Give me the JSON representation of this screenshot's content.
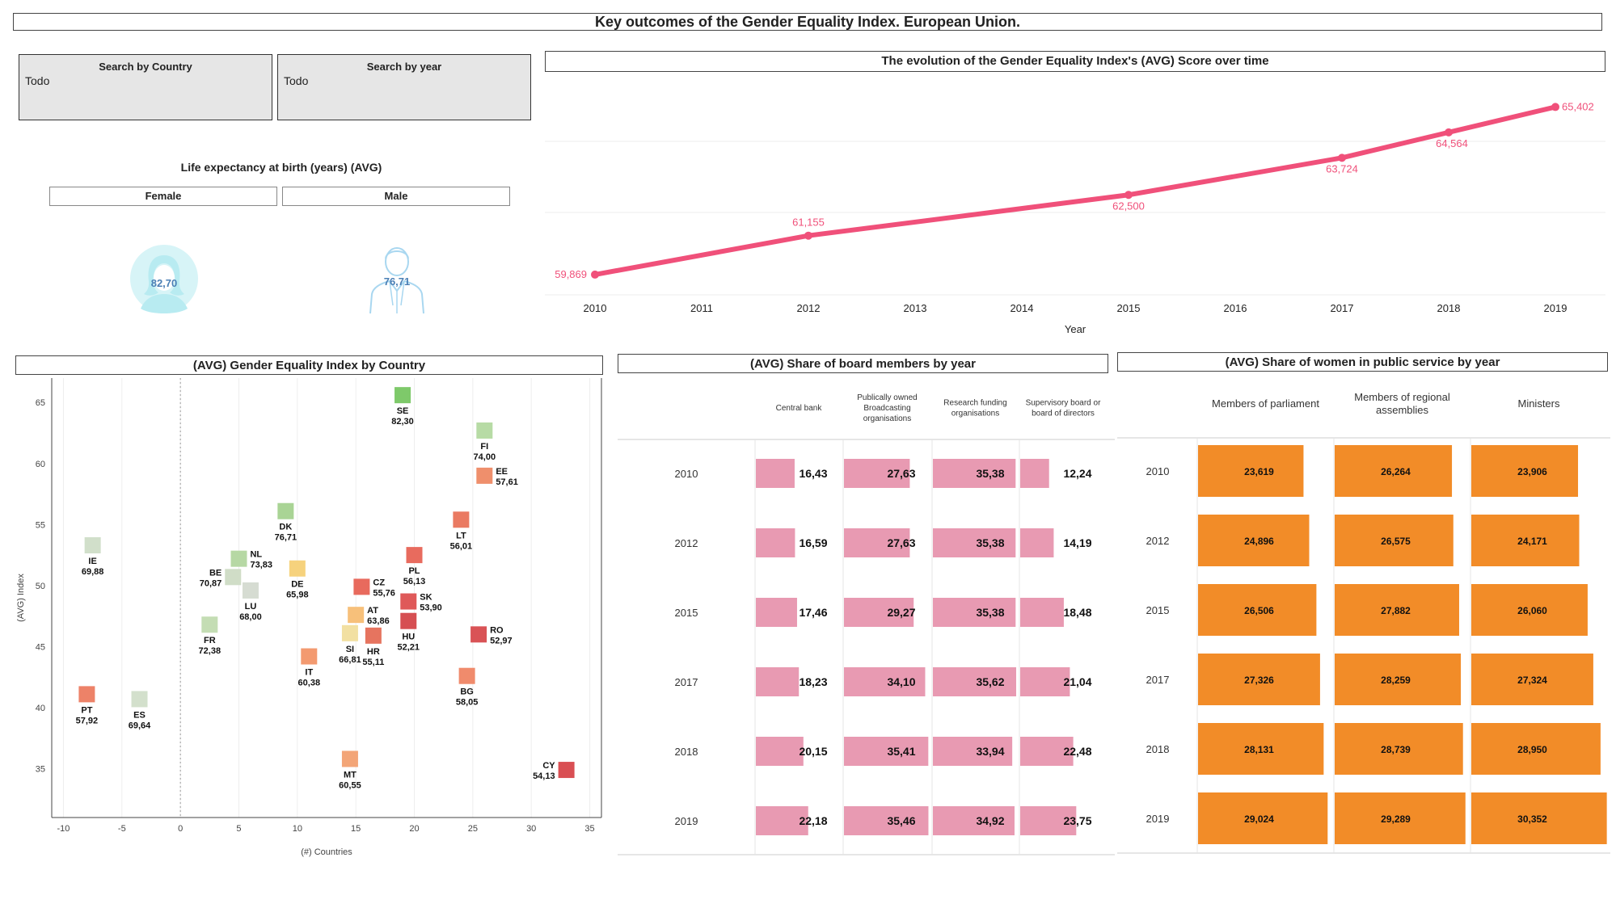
{
  "page_title": "Key outcomes of the Gender Equality Index. European Union.",
  "filters": [
    {
      "title": "Search by Country",
      "value": "Todo"
    },
    {
      "title": "Search by year",
      "value": "Todo"
    }
  ],
  "life_expectancy": {
    "title": "Life expectancy at birth (years) (AVG)",
    "female_label": "Female",
    "male_label": "Male",
    "female_value": "82,70",
    "male_value": "76,71",
    "female_icon": "female-avatar-icon",
    "male_icon": "male-avatar-icon"
  },
  "chart_data": [
    {
      "id": "evolution",
      "type": "line",
      "title": "The evolution of the Gender Equality Index's (AVG) Score over time",
      "xlabel": "Year",
      "ylabel": "",
      "x_ticks": [
        "2010",
        "2011",
        "2012",
        "2013",
        "2014",
        "2015",
        "2016",
        "2017",
        "2018",
        "2019"
      ],
      "x": [
        2010,
        2012,
        2015,
        2017,
        2018,
        2019
      ],
      "values": [
        59.869,
        61.155,
        62.5,
        63.724,
        64.564,
        65.402
      ],
      "labels": [
        "59,869",
        "61,155",
        "62,500",
        "63,724",
        "64,564",
        "65,402"
      ],
      "ylim": [
        59.2,
        66.4
      ],
      "color": "#f0507a"
    },
    {
      "id": "countries",
      "type": "scatter",
      "title": "(AVG) Gender Equality Index by Country",
      "xlabel": "(#) Countries",
      "ylabel": "(AVG) Index",
      "xlim": [
        -11,
        36
      ],
      "ylim": [
        31,
        67
      ],
      "x_ticks": [
        "-10",
        "-5",
        "0",
        "5",
        "10",
        "15",
        "20",
        "25",
        "30",
        "35"
      ],
      "y_ticks": [
        "35",
        "40",
        "45",
        "50",
        "55",
        "60",
        "65"
      ],
      "points": [
        {
          "code": "SE",
          "value": "82,30",
          "x": 19,
          "y": 65.6,
          "color": "#7ec96a"
        },
        {
          "code": "FI",
          "value": "74,00",
          "x": 26,
          "y": 62.7,
          "color": "#b7dba5"
        },
        {
          "code": "EE",
          "value": "57,61",
          "x": 26,
          "y": 59.0,
          "color": "#ef8f6c"
        },
        {
          "code": "LT",
          "value": "56,01",
          "x": 24,
          "y": 55.4,
          "color": "#ea7a62"
        },
        {
          "code": "DK",
          "value": "76,71",
          "x": 9,
          "y": 56.1,
          "color": "#a9d495"
        },
        {
          "code": "IE",
          "value": "69,88",
          "x": -7.5,
          "y": 53.3,
          "color": "#d1dfca"
        },
        {
          "code": "NL",
          "value": "73,83",
          "x": 5,
          "y": 52.2,
          "color": "#b6d8a4"
        },
        {
          "code": "BE",
          "value": "70,87",
          "x": 4.5,
          "y": 50.7,
          "color": "#d0ddc7"
        },
        {
          "code": "LU",
          "value": "68,00",
          "x": 6,
          "y": 49.6,
          "color": "#d6dcd2"
        },
        {
          "code": "DE",
          "value": "65,98",
          "x": 10,
          "y": 51.4,
          "color": "#f6d27d"
        },
        {
          "code": "PL",
          "value": "56,13",
          "x": 20,
          "y": 52.5,
          "color": "#e86b5e"
        },
        {
          "code": "CZ",
          "value": "55,76",
          "x": 15.5,
          "y": 49.9,
          "color": "#e86a5d"
        },
        {
          "code": "SK",
          "value": "53,90",
          "x": 19.5,
          "y": 48.7,
          "color": "#df5959"
        },
        {
          "code": "AT",
          "value": "63,86",
          "x": 15,
          "y": 47.6,
          "color": "#f7c07a"
        },
        {
          "code": "HU",
          "value": "52,21",
          "x": 19.5,
          "y": 47.1,
          "color": "#d64f52"
        },
        {
          "code": "SI",
          "value": "66,81",
          "x": 14.5,
          "y": 46.1,
          "color": "#f2e0a2"
        },
        {
          "code": "HR",
          "value": "55,11",
          "x": 16.5,
          "y": 45.9,
          "color": "#e6745f"
        },
        {
          "code": "RO",
          "value": "52,97",
          "x": 25.5,
          "y": 46.0,
          "color": "#d95356"
        },
        {
          "code": "FR",
          "value": "72,38",
          "x": 2.5,
          "y": 46.8,
          "color": "#c4ddb4"
        },
        {
          "code": "IT",
          "value": "60,38",
          "x": 11,
          "y": 44.2,
          "color": "#f39a70"
        },
        {
          "code": "BG",
          "value": "58,05",
          "x": 24.5,
          "y": 42.6,
          "color": "#f08b6c"
        },
        {
          "code": "PT",
          "value": "57,92",
          "x": -8,
          "y": 41.1,
          "color": "#ed8268"
        },
        {
          "code": "ES",
          "value": "69,64",
          "x": -3.5,
          "y": 40.7,
          "color": "#d3e0cc"
        },
        {
          "code": "MT",
          "value": "60,55",
          "x": 14.5,
          "y": 35.8,
          "color": "#f3a577"
        },
        {
          "code": "CY",
          "value": "54,13",
          "x": 33,
          "y": 34.9,
          "color": "#d94f53"
        }
      ]
    },
    {
      "id": "board",
      "type": "table",
      "title": "(AVG) Share of board members by year",
      "columns": [
        "Central bank",
        "Publically owned Broadcasting organisations",
        "Research funding organisations",
        "Supervisory board or board of directors"
      ],
      "rows": [
        {
          "year": "2010",
          "values": [
            16.43,
            27.63,
            35.38,
            12.24
          ],
          "labels": [
            "16,43",
            "27,63",
            "35,38",
            "12,24"
          ]
        },
        {
          "year": "2012",
          "values": [
            16.59,
            27.63,
            35.38,
            14.19
          ],
          "labels": [
            "16,59",
            "27,63",
            "35,38",
            "14,19"
          ]
        },
        {
          "year": "2015",
          "values": [
            17.46,
            29.27,
            35.38,
            18.48
          ],
          "labels": [
            "17,46",
            "29,27",
            "35,38",
            "18,48"
          ]
        },
        {
          "year": "2017",
          "values": [
            18.23,
            34.1,
            35.62,
            21.04
          ],
          "labels": [
            "18,23",
            "34,10",
            "35,62",
            "21,04"
          ]
        },
        {
          "year": "2018",
          "values": [
            20.15,
            35.41,
            33.94,
            22.48
          ],
          "labels": [
            "20,15",
            "35,41",
            "33,94",
            "22,48"
          ]
        },
        {
          "year": "2019",
          "values": [
            22.18,
            35.46,
            34.92,
            23.75
          ],
          "labels": [
            "22,18",
            "35,46",
            "34,92",
            "23,75"
          ]
        }
      ],
      "bar_color": "#e89ab2",
      "scale_max": 37
    },
    {
      "id": "public_service",
      "type": "table",
      "title": "(AVG) Share of women in public service by year",
      "columns": [
        "Members of parliament",
        "Members of regional assemblies",
        "Ministers"
      ],
      "rows": [
        {
          "year": "2010",
          "values": [
            23.619,
            26.264,
            23.906
          ],
          "labels": [
            "23,619",
            "26,264",
            "23,906"
          ]
        },
        {
          "year": "2012",
          "values": [
            24.896,
            26.575,
            24.171
          ],
          "labels": [
            "24,896",
            "26,575",
            "24,171"
          ]
        },
        {
          "year": "2015",
          "values": [
            26.506,
            27.882,
            26.06
          ],
          "labels": [
            "26,506",
            "27,882",
            "26,060"
          ]
        },
        {
          "year": "2017",
          "values": [
            27.326,
            28.259,
            27.324
          ],
          "labels": [
            "27,326",
            "28,259",
            "27,324"
          ]
        },
        {
          "year": "2018",
          "values": [
            28.131,
            28.739,
            28.95
          ],
          "labels": [
            "28,131",
            "28,739",
            "28,950"
          ]
        },
        {
          "year": "2019",
          "values": [
            29.024,
            29.289,
            30.352
          ],
          "labels": [
            "29,024",
            "29,289",
            "30,352"
          ]
        }
      ],
      "bar_color": "#f28c28",
      "scale_max": 30.6
    }
  ]
}
